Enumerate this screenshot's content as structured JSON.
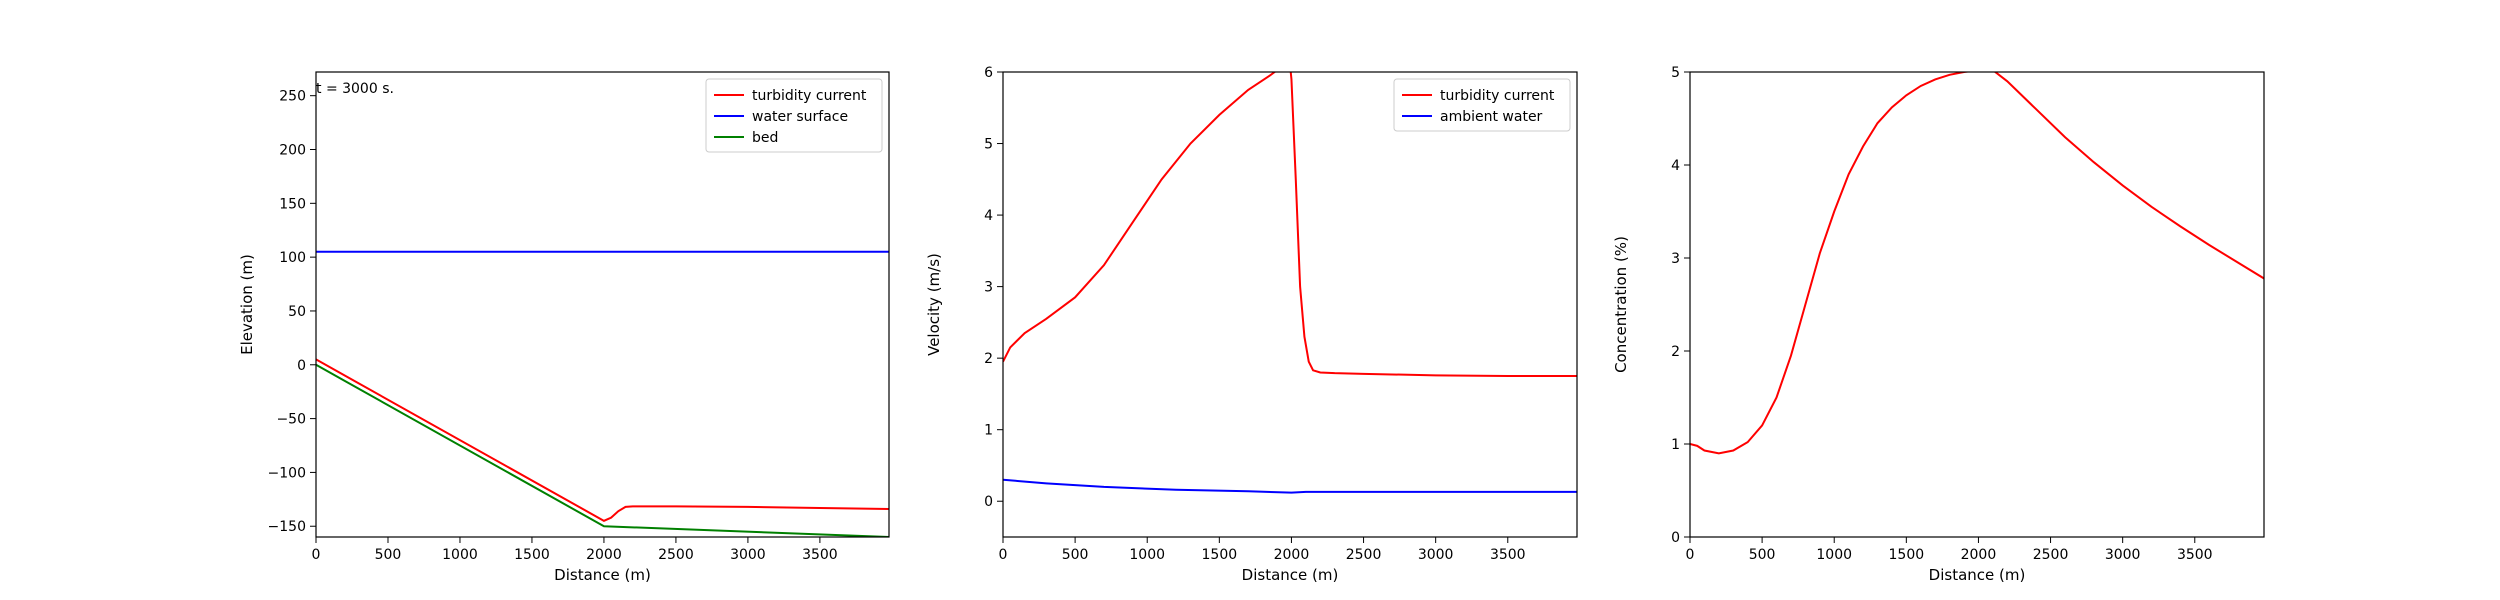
{
  "chart_data": [
    {
      "type": "line",
      "annotation": "t =  3000 s.",
      "xlabel": "Distance (m)",
      "ylabel": "Elevation (m)",
      "xlim": [
        0,
        3980
      ],
      "ylim": [
        -160,
        272
      ],
      "xticks": [
        0,
        500,
        1000,
        1500,
        2000,
        2500,
        3000,
        3500
      ],
      "yticks": [
        -150,
        -100,
        -50,
        0,
        50,
        100,
        150,
        200,
        250
      ],
      "ytick_labels": [
        "−150",
        "−100",
        "−50",
        "0",
        "50",
        "100",
        "150",
        "200",
        "250"
      ],
      "grid": false,
      "legend": "top-right",
      "series": [
        {
          "name": "turbidity current",
          "color": "#ff0000",
          "x": [
            0,
            2000,
            2050,
            2100,
            2150,
            2200,
            2500,
            3000,
            3500,
            3980
          ],
          "y": [
            5,
            -145,
            -142,
            -136,
            -132,
            -131.5,
            -131.5,
            -132,
            -133,
            -134
          ]
        },
        {
          "name": "water surface",
          "color": "#0000ff",
          "x": [
            0,
            3980
          ],
          "y": [
            105,
            105
          ]
        },
        {
          "name": "bed",
          "color": "#008000",
          "x": [
            0,
            2000,
            3980
          ],
          "y": [
            0,
            -150,
            -160
          ]
        }
      ]
    },
    {
      "type": "line",
      "xlabel": "Distance (m)",
      "ylabel": "Velocity (m/s)",
      "xlim": [
        0,
        3980
      ],
      "ylim": [
        -0.5,
        6
      ],
      "xticks": [
        0,
        500,
        1000,
        1500,
        2000,
        2500,
        3000,
        3500
      ],
      "yticks": [
        0,
        1,
        2,
        3,
        4,
        5,
        6
      ],
      "ytick_labels": [
        "0",
        "1",
        "2",
        "3",
        "4",
        "5",
        "6"
      ],
      "grid": false,
      "legend": "top-right",
      "series": [
        {
          "name": "turbidity current",
          "color": "#ff0000",
          "x": [
            0,
            50,
            150,
            300,
            500,
            700,
            900,
            1100,
            1300,
            1500,
            1700,
            1850,
            1950,
            1990,
            2000,
            2030,
            2060,
            2090,
            2120,
            2150,
            2200,
            2300,
            2500,
            3000,
            3500,
            3980
          ],
          "y": [
            1.95,
            2.15,
            2.35,
            2.55,
            2.85,
            3.3,
            3.9,
            4.5,
            5.0,
            5.4,
            5.75,
            5.95,
            6.1,
            6.1,
            5.9,
            4.5,
            3.0,
            2.3,
            1.95,
            1.83,
            1.8,
            1.79,
            1.78,
            1.76,
            1.75,
            1.75
          ]
        },
        {
          "name": "ambient water",
          "color": "#0000ff",
          "x": [
            0,
            300,
            700,
            1200,
            1700,
            2000,
            2100,
            3000,
            3980
          ],
          "y": [
            0.3,
            0.25,
            0.2,
            0.16,
            0.14,
            0.12,
            0.13,
            0.13,
            0.13
          ]
        }
      ]
    },
    {
      "type": "line",
      "xlabel": "Distance (m)",
      "ylabel": "Concentration (%)",
      "xlim": [
        0,
        3980
      ],
      "ylim": [
        0,
        5
      ],
      "xticks": [
        0,
        500,
        1000,
        1500,
        2000,
        2500,
        3000,
        3500
      ],
      "yticks": [
        0,
        1,
        2,
        3,
        4,
        5
      ],
      "ytick_labels": [
        "0",
        "1",
        "2",
        "3",
        "4",
        "5"
      ],
      "grid": false,
      "legend": "none",
      "series": [
        {
          "name": "",
          "color": "#ff0000",
          "x": [
            0,
            50,
            100,
            200,
            300,
            400,
            500,
            600,
            700,
            800,
            900,
            1000,
            1100,
            1200,
            1300,
            1400,
            1500,
            1600,
            1700,
            1800,
            1900,
            2000,
            2100,
            2200,
            2400,
            2600,
            2800,
            3000,
            3200,
            3400,
            3600,
            3800,
            3980
          ],
          "y": [
            1.0,
            0.98,
            0.93,
            0.9,
            0.93,
            1.02,
            1.2,
            1.5,
            1.95,
            2.5,
            3.05,
            3.5,
            3.9,
            4.2,
            4.45,
            4.62,
            4.75,
            4.85,
            4.92,
            4.97,
            5.0,
            5.02,
            5.02,
            4.9,
            4.6,
            4.3,
            4.03,
            3.78,
            3.55,
            3.34,
            3.14,
            2.95,
            2.78
          ]
        }
      ]
    }
  ]
}
